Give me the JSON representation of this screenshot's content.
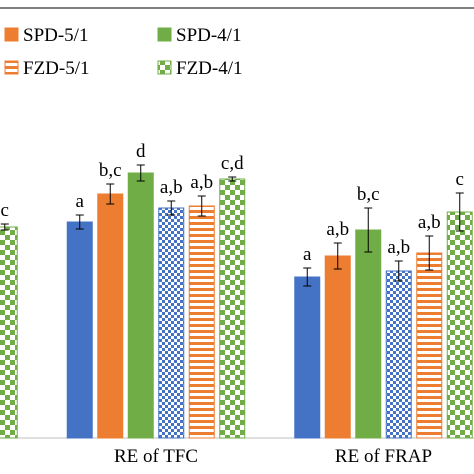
{
  "chart_data": {
    "type": "bar",
    "categories": [
      null,
      "RE of TFC",
      "RE of FRAP"
    ],
    "ylim": [
      0,
      300
    ],
    "series": [
      {
        "color": "#4472c4",
        "fill_style": "solid",
        "values": [
          null,
          216,
          161
        ],
        "errors": [
          null,
          7,
          9
        ],
        "labels": [
          null,
          "a",
          "a"
        ]
      },
      {
        "name": "SPD-5/1",
        "color": "#ed7d31",
        "fill_style": "solid",
        "values": [
          null,
          244,
          182
        ],
        "errors": [
          null,
          10,
          13
        ],
        "labels": [
          null,
          "b,c",
          "a,b"
        ]
      },
      {
        "name": "SPD-4/1",
        "color": "#70ad47",
        "fill_style": "solid",
        "values": [
          null,
          265,
          208
        ],
        "errors": [
          null,
          8,
          22
        ],
        "labels": [
          null,
          "d",
          "b,c"
        ]
      },
      {
        "color": "#4472c4",
        "fill_style": "check-small",
        "values": [
          null,
          230,
          167
        ],
        "errors": [
          null,
          7,
          10
        ],
        "labels": [
          null,
          "a,b",
          "a,b"
        ]
      },
      {
        "name": "FZD-5/1",
        "color": "#ed7d31",
        "fill_style": "stripe",
        "values": [
          null,
          232,
          185
        ],
        "errors": [
          null,
          10,
          17
        ],
        "labels": [
          null,
          "a,b",
          "a,b"
        ]
      },
      {
        "name": "FZD-4/1",
        "color": "#70ad47",
        "fill_style": "check",
        "values": [
          211,
          259,
          226
        ],
        "errors": [
          3,
          2,
          19
        ],
        "labels": [
          "c",
          "c,d",
          "c"
        ]
      }
    ]
  }
}
